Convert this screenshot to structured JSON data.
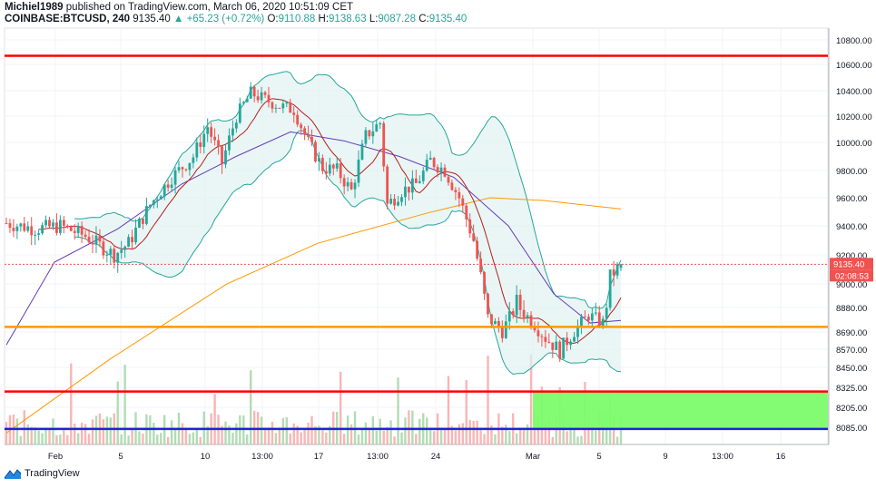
{
  "header": {
    "author": "Michiel1989",
    "published_text": "published on TradingView.com, March 06, 2020 10:51:09 CET",
    "symbol": "COINBASE:BTCUSD, 240",
    "last": "9135.40",
    "change": "▲ +65.23 (+0.72%)",
    "o_label": "O:",
    "o_value": "9110.88",
    "h_label": "H:",
    "h_value": "9138.63",
    "l_label": "L:",
    "l_value": "9087.28",
    "c_label": "C:",
    "c_value": "9135.40"
  },
  "footer": {
    "brand": "TradingView"
  },
  "colors": {
    "up": "#26a69a",
    "down": "#ef5350",
    "resistance": "#ff0000",
    "support": "#ff9800",
    "bb": "#26a69a",
    "bbFill": "#e0f2f1",
    "ma_red": "#b71c1c",
    "ma_purple": "#673ab7",
    "ma_orange": "#ff9800",
    "zone": "#7cfc6c",
    "blue_line": "#1e22d6"
  },
  "chart_data": {
    "type": "candlestick",
    "title": "",
    "ylim": [
      8000,
      10900
    ],
    "y_ticks": [
      "10800.00",
      "10600.00",
      "10400.00",
      "10200.00",
      "10000.00",
      "9800.00",
      "9600.00",
      "9400.00",
      "9200.00",
      "9000.00",
      "8880.00",
      "8690.00",
      "8570.00",
      "8450.00",
      "8325.00",
      "8205.00",
      "8085.00"
    ],
    "x_ticks": [
      "Feb",
      "5",
      "10",
      "13:00",
      "17",
      "13:00",
      "24",
      "Mar",
      "5",
      "9",
      "13:00",
      "16"
    ],
    "price_label": "9135.40",
    "countdown_label": "02:08:53",
    "horizontal_levels": [
      {
        "name": "resistance-top",
        "value": 10670,
        "color": "#ff0000"
      },
      {
        "name": "support-orange",
        "value": 8730,
        "color": "#ff9800"
      },
      {
        "name": "support-red",
        "value": 8300,
        "color": "#ff0000"
      },
      {
        "name": "support-blue",
        "value": 8075,
        "color": "#1e22d6"
      }
    ],
    "price_line": 9135.4,
    "zone": {
      "from_date": "Mar 1",
      "to_date": "future",
      "low": 8080,
      "high": 8300
    }
  }
}
